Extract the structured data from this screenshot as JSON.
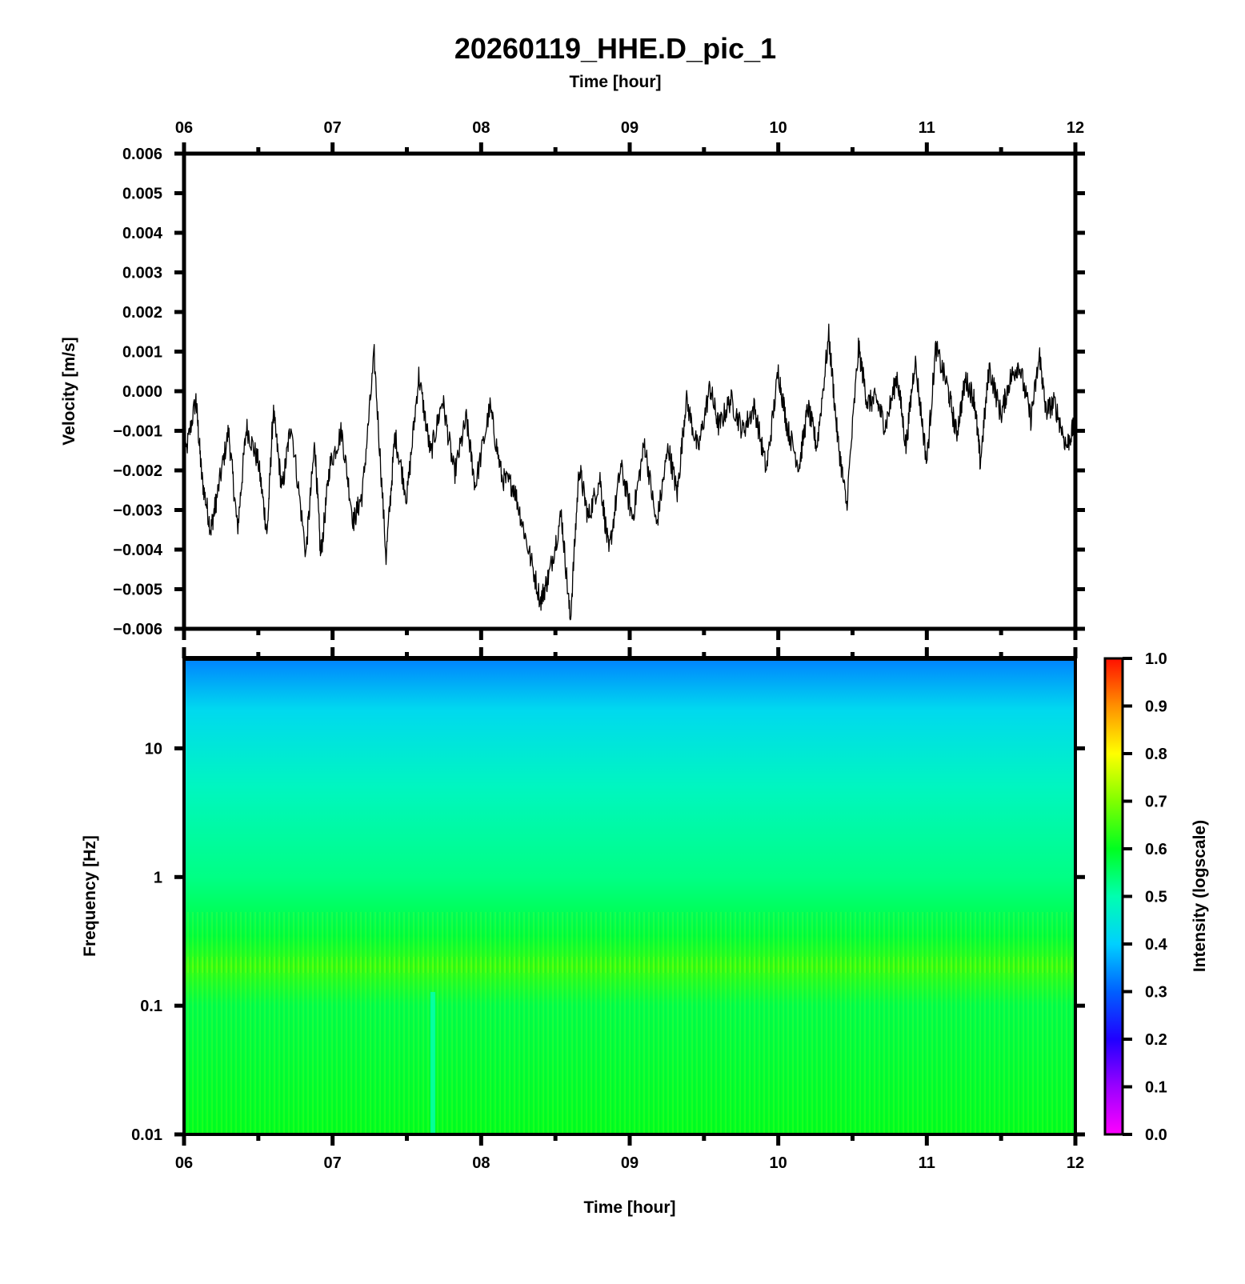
{
  "colors": {
    "waveform": "#000000",
    "axes": "#000000",
    "spectrogram_top": "#0090ff",
    "spectrogram_mid": "#00ffdc",
    "spectrogram_low": "#00ff5a"
  },
  "chart_data": [
    {
      "type": "line",
      "title": "20260119_HHE.D_pic_1",
      "xlabel": "Time [hour]",
      "ylabel": "Velocity [m/s]",
      "xlim": [
        6,
        12
      ],
      "ylim": [
        -0.006,
        0.006
      ],
      "x_ticks": [
        "06",
        "07",
        "08",
        "09",
        "10",
        "11",
        "12"
      ],
      "y_ticks": [
        "0.006",
        "0.005",
        "0.004",
        "0.003",
        "0.002",
        "0.001",
        "0.000",
        "−0.001",
        "−0.002",
        "−0.003",
        "−0.004",
        "−0.005",
        "−0.006"
      ],
      "grid": false,
      "series": [
        {
          "x": [
            6.0,
            6.08,
            6.12,
            6.18,
            6.22,
            6.3,
            6.36,
            6.42,
            6.5,
            6.56,
            6.6,
            6.66,
            6.72,
            6.82,
            6.88,
            6.92,
            6.98,
            7.06,
            7.14,
            7.2,
            7.28,
            7.36,
            7.42,
            7.5,
            7.58,
            7.66,
            7.74,
            7.82,
            7.9,
            7.96,
            8.06,
            8.14,
            8.22,
            8.3,
            8.4,
            8.46,
            8.54,
            8.6,
            8.66,
            8.72,
            8.8,
            8.86,
            8.94,
            9.02,
            9.1,
            9.18,
            9.26,
            9.32,
            9.38,
            9.46,
            9.54,
            9.6,
            9.68,
            9.76,
            9.84,
            9.92,
            10.0,
            10.06,
            10.14,
            10.2,
            10.26,
            10.34,
            10.4,
            10.46,
            10.54,
            10.6,
            10.66,
            10.72,
            10.8,
            10.86,
            10.92,
            11.0,
            11.06,
            11.14,
            11.2,
            11.26,
            11.32,
            11.36,
            11.42,
            11.5,
            11.56,
            11.62,
            11.7,
            11.76,
            11.8,
            11.86,
            11.94,
            12.0
          ],
          "y": [
            -0.0018,
            -0.0002,
            -0.0022,
            -0.0035,
            -0.0027,
            -0.001,
            -0.0035,
            -0.0009,
            -0.0018,
            -0.0036,
            -0.0005,
            -0.0025,
            -0.0008,
            -0.0041,
            -0.0013,
            -0.0042,
            -0.0019,
            -0.001,
            -0.0033,
            -0.0026,
            0.0009,
            -0.0042,
            -0.0011,
            -0.0027,
            0.0004,
            -0.0016,
            -0.0002,
            -0.0021,
            -0.0007,
            -0.0024,
            -0.0004,
            -0.0022,
            -0.0024,
            -0.0037,
            -0.0053,
            -0.0046,
            -0.0031,
            -0.0058,
            -0.0019,
            -0.0032,
            -0.0022,
            -0.0041,
            -0.0019,
            -0.0032,
            -0.0013,
            -0.0034,
            -0.0014,
            -0.0026,
            -0.0002,
            -0.0015,
            0.0001,
            -0.0009,
            -0.0002,
            -0.001,
            -0.0004,
            -0.002,
            0.0005,
            -0.0009,
            -0.0019,
            -0.0004,
            -0.0014,
            0.0014,
            -0.0012,
            -0.0029,
            0.0011,
            -0.0003,
            -0.0002,
            -0.0009,
            0.0004,
            -0.0014,
            0.0008,
            -0.0018,
            0.0011,
            0.0001,
            -0.0011,
            0.0003,
            -0.0002,
            -0.0018,
            0.0006,
            -0.0006,
            0.0003,
            0.0007,
            -0.0007,
            0.0009,
            -0.0005,
            -0.0003,
            -0.0014,
            -0.0008
          ]
        }
      ]
    },
    {
      "type": "heatmap",
      "xlabel": "Time [hour]",
      "ylabel": "Frequency [Hz]",
      "xlim": [
        6,
        12
      ],
      "ylim": [
        0.01,
        50
      ],
      "yscale": "log",
      "x_ticks": [
        "06",
        "07",
        "08",
        "09",
        "10",
        "11",
        "12"
      ],
      "y_ticks": [
        "10",
        "1",
        "0.1",
        "0.01"
      ],
      "colorbar": {
        "label": "Intensity (logscale)",
        "range": [
          0.0,
          1.0
        ],
        "ticks": [
          "1.0",
          "0.9",
          "0.8",
          "0.7",
          "0.6",
          "0.5",
          "0.4",
          "0.3",
          "0.2",
          "0.1",
          "0.0"
        ]
      },
      "intensity_profile": [
        {
          "freq_hz": 50,
          "intensity": 0.33
        },
        {
          "freq_hz": 20,
          "intensity": 0.42
        },
        {
          "freq_hz": 5,
          "intensity": 0.48
        },
        {
          "freq_hz": 1,
          "intensity": 0.53
        },
        {
          "freq_hz": 0.35,
          "intensity": 0.58
        },
        {
          "freq_hz": 0.2,
          "intensity": 0.64
        },
        {
          "freq_hz": 0.1,
          "intensity": 0.57
        },
        {
          "freq_hz": 0.01,
          "intensity": 0.6
        }
      ]
    }
  ]
}
